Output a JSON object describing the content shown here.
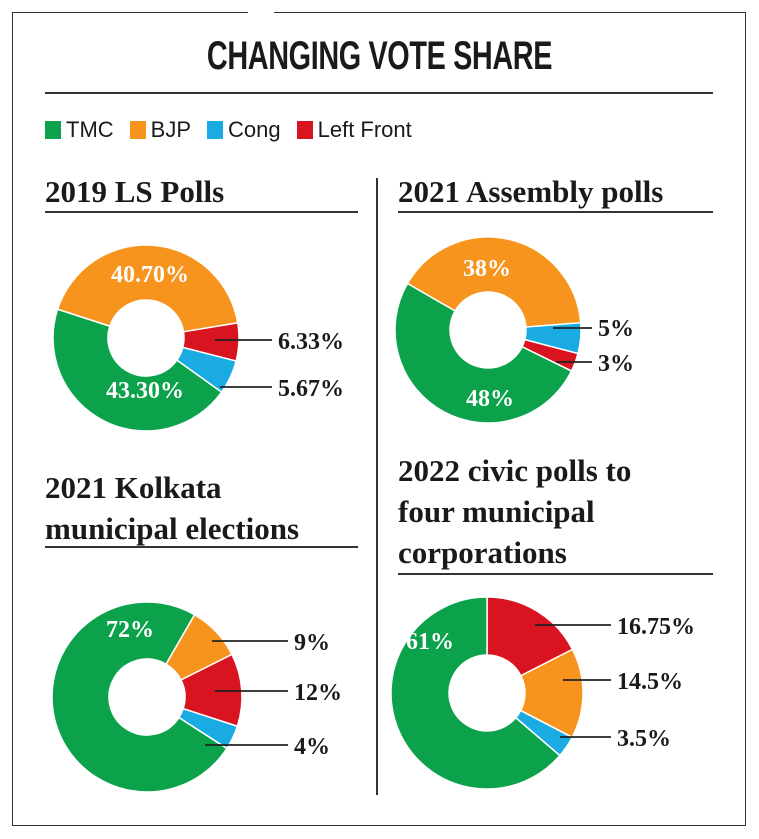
{
  "title": "CHANGING VOTE SHARE",
  "legend": [
    {
      "label": "TMC",
      "color": "#0ca24b"
    },
    {
      "label": "BJP",
      "color": "#f7941d"
    },
    {
      "label": "Cong",
      "color": "#1aabe3"
    },
    {
      "label": "Left Front",
      "color": "#d7141f"
    }
  ],
  "chart_data": [
    {
      "type": "pie",
      "title": "2019 LS Polls",
      "slices": [
        {
          "party": "BJP",
          "value": 40.7,
          "label": "40.70%"
        },
        {
          "party": "Left Front",
          "value": 6.33,
          "label": "6.33%"
        },
        {
          "party": "Cong",
          "value": 5.67,
          "label": "5.67%"
        },
        {
          "party": "TMC",
          "value": 43.3,
          "label": "43.30%"
        }
      ]
    },
    {
      "type": "pie",
      "title": "2021 Assembly polls",
      "slices": [
        {
          "party": "BJP",
          "value": 38,
          "label": "38%"
        },
        {
          "party": "Cong",
          "value": 5,
          "label": "5%"
        },
        {
          "party": "Left Front",
          "value": 3,
          "label": "3%"
        },
        {
          "party": "TMC",
          "value": 48,
          "label": "48%"
        }
      ]
    },
    {
      "type": "pie",
      "title": "2021 Kolkata municipal elections",
      "title_lines": [
        "2021 Kolkata",
        "municipal elections"
      ],
      "slices": [
        {
          "party": "BJP",
          "value": 9,
          "label": "9%"
        },
        {
          "party": "Left Front",
          "value": 12,
          "label": "12%"
        },
        {
          "party": "Cong",
          "value": 4,
          "label": "4%"
        },
        {
          "party": "TMC",
          "value": 72,
          "label": "72%"
        }
      ]
    },
    {
      "type": "pie",
      "title": "2022 civic polls to four municipal corporations",
      "title_lines": [
        "2022 civic polls to",
        "four municipal",
        "corporations"
      ],
      "slices": [
        {
          "party": "Left Front",
          "value": 16.75,
          "label": "16.75%"
        },
        {
          "party": "BJP",
          "value": 14.5,
          "label": "14.5%"
        },
        {
          "party": "Cong",
          "value": 3.5,
          "label": "3.5%"
        },
        {
          "party": "TMC",
          "value": 61,
          "label": "61%"
        }
      ]
    }
  ]
}
